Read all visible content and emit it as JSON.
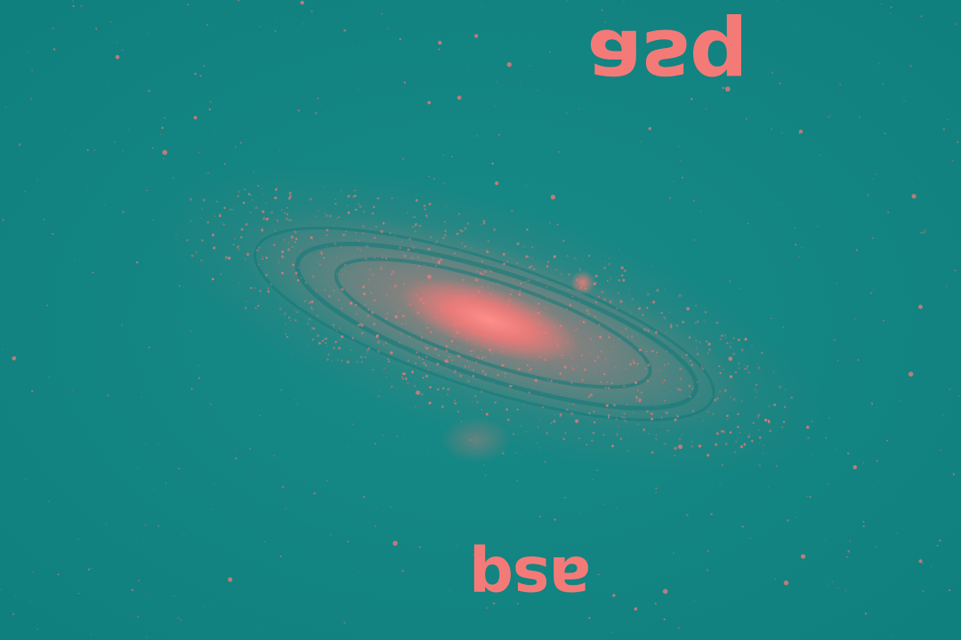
{
  "image": {
    "subject": "spiral-galaxy",
    "background_color": "#138482",
    "highlight_color": "#F47A78"
  },
  "captions": {
    "top": "asq",
    "bottom": "asq"
  }
}
